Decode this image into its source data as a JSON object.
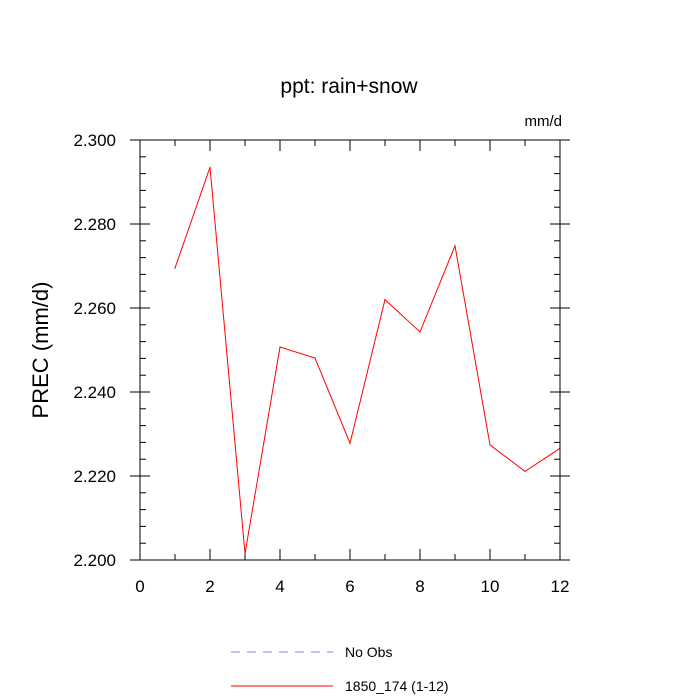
{
  "chart_data": {
    "type": "line",
    "title": "ppt: rain+snow",
    "units": "mm/d",
    "ylabel": "PREC  (mm/d)",
    "xlabel": "",
    "xlim": [
      0,
      12
    ],
    "ylim": [
      2.2,
      2.3
    ],
    "x_ticks": [
      0,
      2,
      4,
      6,
      8,
      10,
      12
    ],
    "x_tick_labels": [
      "0",
      "2",
      "4",
      "6",
      "8",
      "10",
      "12"
    ],
    "y_ticks": [
      2.2,
      2.22,
      2.24,
      2.26,
      2.28,
      2.3
    ],
    "y_tick_labels": [
      "2.200",
      "2.220",
      "2.240",
      "2.260",
      "2.280",
      "2.300"
    ],
    "grid": false,
    "legend_position": "bottom",
    "series": [
      {
        "name": "1850_174 (1-12)",
        "color": "#ff0000",
        "style": "solid",
        "x": [
          1,
          2,
          3,
          4,
          5,
          6,
          7,
          8,
          9,
          10,
          11,
          12
        ],
        "y": [
          2.2695,
          2.2935,
          2.2015,
          2.2507,
          2.2481,
          2.2278,
          2.262,
          2.2543,
          2.2748,
          2.2274,
          2.2211,
          2.2266
        ]
      }
    ],
    "legend": [
      {
        "label": "No Obs",
        "color": "#8080ff",
        "style": "dashed"
      },
      {
        "label": "1850_174 (1-12)",
        "color": "#ff0000",
        "style": "solid"
      }
    ]
  }
}
